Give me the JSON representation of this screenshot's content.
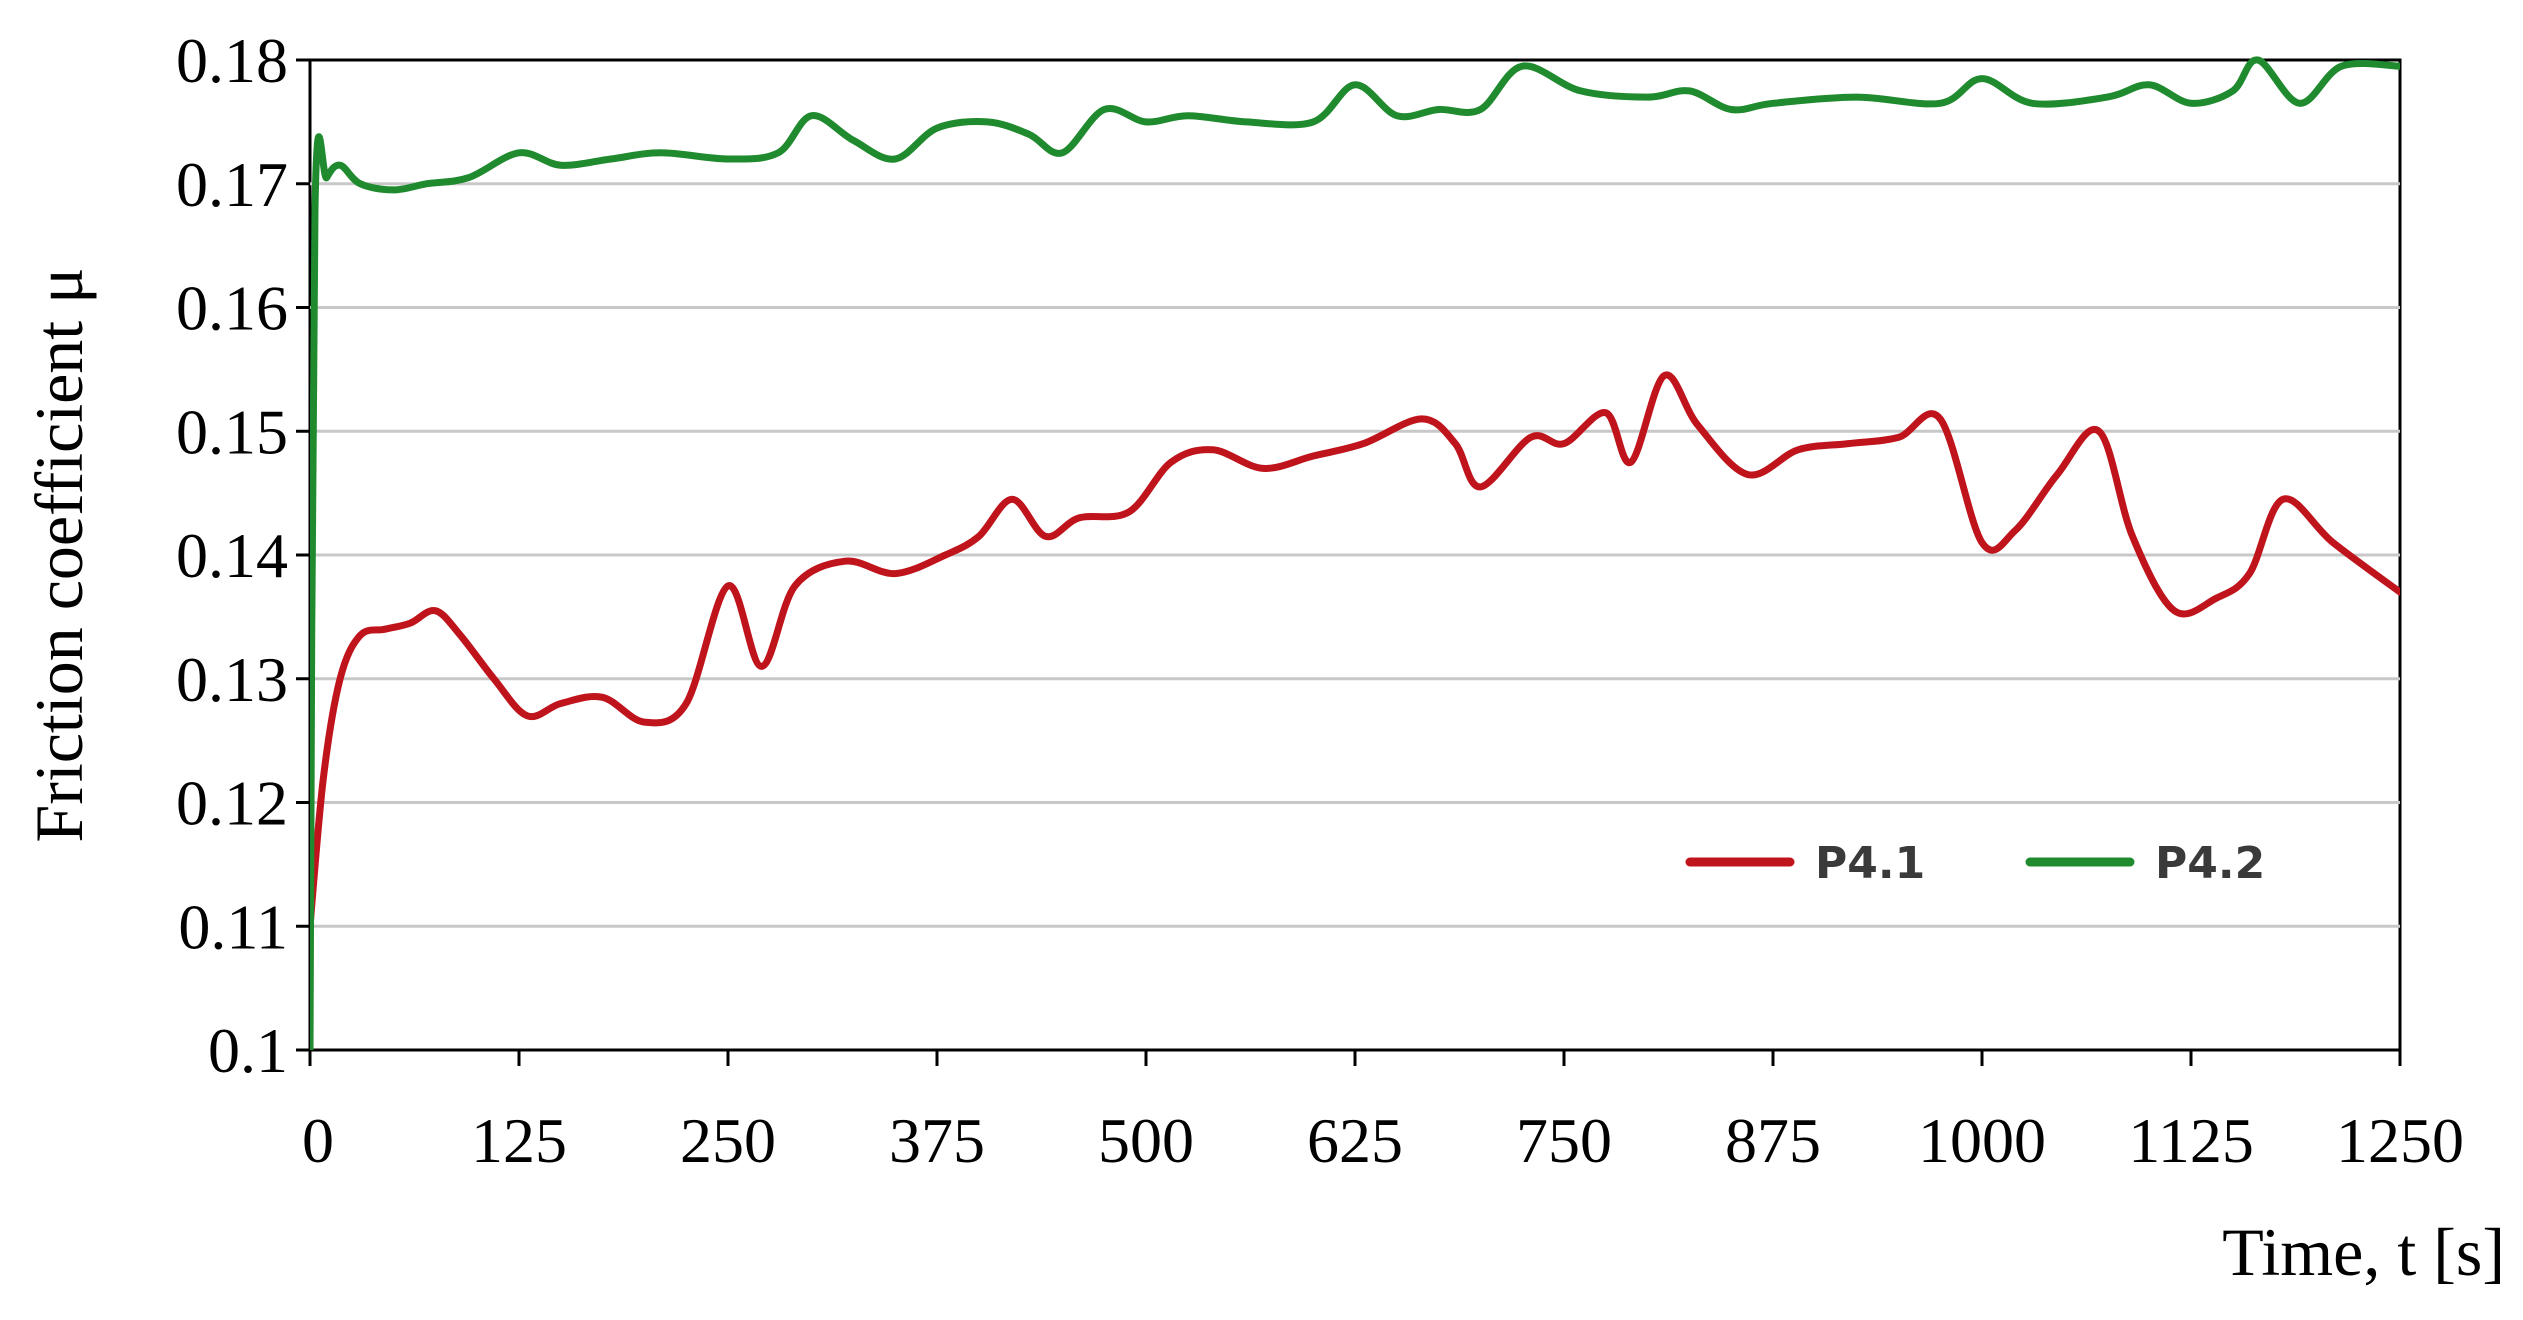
{
  "chart_data": {
    "type": "line",
    "xlabel": "Time, t [s]",
    "ylabel": "Friction coefficient μ",
    "xlim": [
      0,
      1250
    ],
    "ylim": [
      0.1,
      0.18
    ],
    "x_ticks": [
      "0",
      "125",
      "250",
      "375",
      "500",
      "625",
      "750",
      "875",
      "1000",
      "1125",
      "1250"
    ],
    "y_ticks": [
      "0.1",
      "0.11",
      "0.12",
      "0.13",
      "0.14",
      "0.15",
      "0.16",
      "0.17",
      "0.18"
    ],
    "grid": true,
    "legend_position": "lower-right",
    "series": [
      {
        "name": "P4.1",
        "color": "#c0141c",
        "points": [
          [
            0,
            0.11
          ],
          [
            8,
            0.122
          ],
          [
            18,
            0.13
          ],
          [
            30,
            0.1335
          ],
          [
            45,
            0.134
          ],
          [
            60,
            0.1345
          ],
          [
            75,
            0.1355
          ],
          [
            90,
            0.1335
          ],
          [
            110,
            0.13
          ],
          [
            130,
            0.127
          ],
          [
            150,
            0.128
          ],
          [
            175,
            0.1285
          ],
          [
            200,
            0.1265
          ],
          [
            225,
            0.128
          ],
          [
            250,
            0.1375
          ],
          [
            270,
            0.131
          ],
          [
            290,
            0.1375
          ],
          [
            320,
            0.1395
          ],
          [
            350,
            0.1385
          ],
          [
            380,
            0.14
          ],
          [
            400,
            0.1415
          ],
          [
            420,
            0.1445
          ],
          [
            440,
            0.1415
          ],
          [
            460,
            0.143
          ],
          [
            490,
            0.1435
          ],
          [
            515,
            0.1475
          ],
          [
            540,
            0.1485
          ],
          [
            570,
            0.147
          ],
          [
            600,
            0.148
          ],
          [
            630,
            0.149
          ],
          [
            665,
            0.151
          ],
          [
            685,
            0.149
          ],
          [
            700,
            0.1455
          ],
          [
            730,
            0.1495
          ],
          [
            750,
            0.149
          ],
          [
            775,
            0.1515
          ],
          [
            790,
            0.1475
          ],
          [
            810,
            0.1545
          ],
          [
            830,
            0.1505
          ],
          [
            860,
            0.1465
          ],
          [
            890,
            0.1485
          ],
          [
            920,
            0.149
          ],
          [
            950,
            0.1495
          ],
          [
            975,
            0.151
          ],
          [
            1000,
            0.141
          ],
          [
            1020,
            0.142
          ],
          [
            1045,
            0.1465
          ],
          [
            1070,
            0.15
          ],
          [
            1090,
            0.1415
          ],
          [
            1115,
            0.1355
          ],
          [
            1140,
            0.1365
          ],
          [
            1160,
            0.1385
          ],
          [
            1180,
            0.1445
          ],
          [
            1210,
            0.141
          ],
          [
            1250,
            0.137
          ]
        ]
      },
      {
        "name": "P4.2",
        "color": "#1f8a2e",
        "points": [
          [
            0,
            0.1
          ],
          [
            3,
            0.168
          ],
          [
            10,
            0.1705
          ],
          [
            18,
            0.1715
          ],
          [
            30,
            0.17
          ],
          [
            50,
            0.1695
          ],
          [
            70,
            0.17
          ],
          [
            95,
            0.1705
          ],
          [
            125,
            0.1725
          ],
          [
            150,
            0.1715
          ],
          [
            180,
            0.172
          ],
          [
            210,
            0.1725
          ],
          [
            250,
            0.172
          ],
          [
            280,
            0.1725
          ],
          [
            300,
            0.1755
          ],
          [
            325,
            0.1735
          ],
          [
            350,
            0.172
          ],
          [
            375,
            0.1745
          ],
          [
            405,
            0.175
          ],
          [
            430,
            0.174
          ],
          [
            450,
            0.1725
          ],
          [
            475,
            0.176
          ],
          [
            500,
            0.175
          ],
          [
            525,
            0.1755
          ],
          [
            560,
            0.175
          ],
          [
            600,
            0.175
          ],
          [
            625,
            0.178
          ],
          [
            650,
            0.1755
          ],
          [
            675,
            0.176
          ],
          [
            700,
            0.176
          ],
          [
            725,
            0.1795
          ],
          [
            760,
            0.1775
          ],
          [
            800,
            0.177
          ],
          [
            825,
            0.1775
          ],
          [
            850,
            0.176
          ],
          [
            875,
            0.1765
          ],
          [
            925,
            0.177
          ],
          [
            975,
            0.1765
          ],
          [
            1000,
            0.1785
          ],
          [
            1030,
            0.1765
          ],
          [
            1075,
            0.177
          ],
          [
            1100,
            0.178
          ],
          [
            1125,
            0.1765
          ],
          [
            1150,
            0.1775
          ],
          [
            1165,
            0.18
          ],
          [
            1190,
            0.1765
          ],
          [
            1215,
            0.1795
          ],
          [
            1250,
            0.1795
          ]
        ]
      }
    ]
  }
}
